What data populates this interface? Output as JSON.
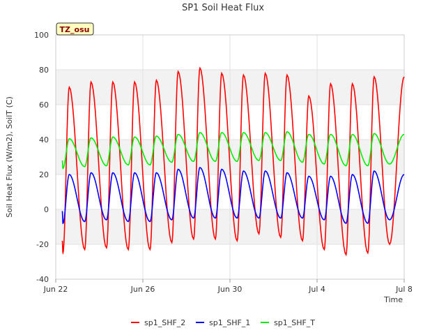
{
  "chart_data": {
    "type": "line",
    "title": "SP1 Soil Heat Flux",
    "xlabel": "Time",
    "ylabel": "Soil Heat Flux (W/m2), SoilT (C)",
    "badge": "TZ_osu",
    "xlim_days": [
      0,
      16
    ],
    "ylim": [
      -40,
      100
    ],
    "y_ticks": [
      -40,
      -20,
      0,
      20,
      40,
      60,
      80,
      100
    ],
    "x_ticks": [
      {
        "label": "Jun 22",
        "day": 0
      },
      {
        "label": "Jun 26",
        "day": 4
      },
      {
        "label": "Jun 30",
        "day": 8
      },
      {
        "label": "Jul 4",
        "day": 12
      },
      {
        "label": "Jul 8",
        "day": 16
      }
    ],
    "bands": [
      [
        60,
        80
      ],
      [
        20,
        40
      ],
      [
        -20,
        0
      ]
    ],
    "legend_position": "bottom-center",
    "series": [
      {
        "name": "sp1_SHF_2",
        "color": "#ff0000",
        "start_day": 0.3,
        "start_value": -18,
        "daily_min": [
          -25,
          -23,
          -22,
          -23,
          -23,
          -19,
          -17,
          -17,
          -18,
          -14,
          -16,
          -18,
          -23,
          -26,
          -25,
          -20
        ],
        "daily_max": [
          70,
          73,
          73,
          73,
          74,
          79,
          81,
          78,
          77,
          78,
          77,
          65,
          72,
          72,
          76
        ],
        "end_value": 76
      },
      {
        "name": "sp1_SHF_1",
        "color": "#0000ff",
        "start_day": 0.3,
        "start_value": -1,
        "daily_min": [
          -8,
          -7,
          -6,
          -7,
          -7,
          -6,
          -5,
          -5,
          -5,
          -5,
          -5,
          -5,
          -6,
          -8,
          -8,
          -6
        ],
        "daily_max": [
          20,
          21,
          21,
          21,
          21,
          23,
          24,
          23,
          22,
          22,
          21,
          19,
          19,
          20,
          22
        ],
        "end_value": 20
      },
      {
        "name": "sp1_SHF_T",
        "color": "#00ee00",
        "start_day": 0.3,
        "start_value": 28,
        "daily_min": [
          23.5,
          24.5,
          25,
          25.5,
          25.5,
          27,
          27.5,
          27.5,
          27.5,
          28,
          28,
          27,
          26,
          25,
          25,
          26
        ],
        "daily_max": [
          40.5,
          41,
          41.5,
          41.5,
          42,
          43,
          44,
          44,
          44,
          44,
          44.5,
          43,
          43,
          43,
          43.5
        ],
        "end_value": 43
      }
    ]
  }
}
